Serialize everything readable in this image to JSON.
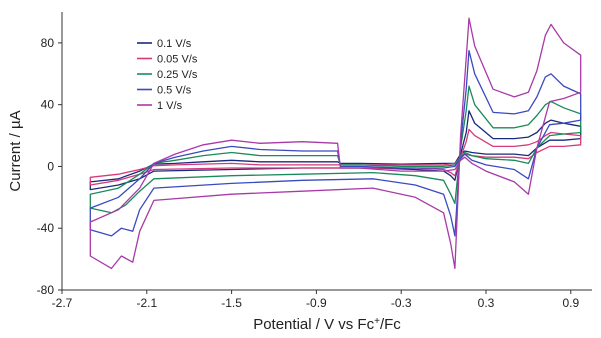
{
  "chart_data": {
    "type": "line",
    "xlabel": "Potential / V vs Fc",
    "xlabel_sup": "+",
    "xlabel_tail": "/Fc",
    "ylabel": "Current / µA",
    "xlim": [
      -2.7,
      1.05
    ],
    "ylim": [
      -80,
      100
    ],
    "x_ticks": [
      -2.7,
      -2.1,
      -1.5,
      -0.9,
      -0.3,
      0.3,
      0.9
    ],
    "x_tick_labels": [
      "-2.7",
      "-2.1",
      "-1.5",
      "-0.9",
      "-0.3",
      "0.3",
      "0.9"
    ],
    "y_ticks": [
      -80,
      -40,
      0,
      40,
      80
    ],
    "y_tick_labels": [
      "-80",
      "-40",
      "0",
      "40",
      "80"
    ],
    "grid": false,
    "legend_position": "top-left",
    "series": [
      {
        "name": "0.1 V/s",
        "color": "#1a2a7a",
        "segments": [
          [
            [
              -0.75,
              3
            ],
            [
              -1.0,
              3
            ],
            [
              -1.3,
              3
            ],
            [
              -1.5,
              4
            ],
            [
              -1.7,
              3
            ],
            [
              -1.9,
              2
            ],
            [
              -2.05,
              1.5
            ],
            [
              -2.15,
              -3
            ],
            [
              -2.3,
              -8
            ],
            [
              -2.5,
              -10
            ],
            [
              -2.5,
              -15
            ],
            [
              -2.3,
              -12
            ],
            [
              -2.15,
              -8
            ],
            [
              -2.05,
              -3
            ],
            [
              -1.5,
              -2
            ],
            [
              -1.0,
              -1
            ],
            [
              -0.5,
              -1
            ],
            [
              -0.2,
              -2
            ],
            [
              0.0,
              -3
            ],
            [
              0.05,
              -6
            ],
            [
              0.08,
              -9
            ],
            [
              0.12,
              8
            ],
            [
              0.16,
              22
            ],
            [
              0.18,
              36
            ],
            [
              0.22,
              28
            ],
            [
              0.35,
              18
            ],
            [
              0.5,
              18
            ],
            [
              0.6,
              19
            ],
            [
              0.66,
              22
            ],
            [
              0.72,
              28
            ],
            [
              0.76,
              30
            ],
            [
              0.85,
              28
            ],
            [
              0.97,
              26
            ],
            [
              0.97,
              18
            ],
            [
              0.85,
              17
            ],
            [
              0.75,
              17
            ],
            [
              0.66,
              12
            ],
            [
              0.6,
              7
            ],
            [
              0.5,
              8
            ],
            [
              0.3,
              8
            ],
            [
              0.2,
              9
            ],
            [
              0.15,
              10
            ],
            [
              0.12,
              8
            ],
            [
              0.08,
              2
            ],
            [
              0.0,
              2
            ],
            [
              -0.3,
              1.5
            ],
            [
              -0.6,
              2
            ],
            [
              -0.73,
              2
            ]
          ]
        ]
      },
      {
        "name": "0.05 V/s",
        "color": "#d63a7a",
        "segments": [
          [
            [
              -0.75,
              1
            ],
            [
              -1.0,
              1
            ],
            [
              -1.3,
              1
            ],
            [
              -1.5,
              2
            ],
            [
              -1.7,
              1.5
            ],
            [
              -1.9,
              1
            ],
            [
              -2.05,
              0.5
            ],
            [
              -2.15,
              -2
            ],
            [
              -2.3,
              -5
            ],
            [
              -2.5,
              -7
            ],
            [
              -2.5,
              -12
            ],
            [
              -2.3,
              -9
            ],
            [
              -2.15,
              -5
            ],
            [
              -2.05,
              -2
            ],
            [
              -1.5,
              -1
            ],
            [
              -1.0,
              -1
            ],
            [
              -0.5,
              -1
            ],
            [
              -0.2,
              -1
            ],
            [
              0.0,
              -2
            ],
            [
              0.05,
              -4
            ],
            [
              0.08,
              -6
            ],
            [
              0.12,
              6
            ],
            [
              0.16,
              16
            ],
            [
              0.18,
              24
            ],
            [
              0.22,
              20
            ],
            [
              0.35,
              13
            ],
            [
              0.5,
              13
            ],
            [
              0.6,
              14
            ],
            [
              0.66,
              16
            ],
            [
              0.72,
              20
            ],
            [
              0.76,
              22
            ],
            [
              0.85,
              21
            ],
            [
              0.97,
              20
            ],
            [
              0.97,
              14
            ],
            [
              0.85,
              13
            ],
            [
              0.75,
              13
            ],
            [
              0.66,
              9
            ],
            [
              0.6,
              5
            ],
            [
              0.5,
              6
            ],
            [
              0.3,
              6
            ],
            [
              0.2,
              7
            ],
            [
              0.15,
              8
            ],
            [
              0.12,
              6
            ],
            [
              0.08,
              2
            ],
            [
              0.0,
              1
            ],
            [
              -0.3,
              1
            ],
            [
              -0.6,
              1
            ],
            [
              -0.73,
              1
            ]
          ]
        ]
      },
      {
        "name": "0.25 V/s",
        "color": "#1a8a5a",
        "segments": [
          [
            [
              -0.75,
              7
            ],
            [
              -1.0,
              7
            ],
            [
              -1.3,
              7
            ],
            [
              -1.5,
              9
            ],
            [
              -1.7,
              7
            ],
            [
              -1.9,
              4
            ],
            [
              -2.05,
              2
            ],
            [
              -2.15,
              -5
            ],
            [
              -2.3,
              -14
            ],
            [
              -2.5,
              -18
            ],
            [
              -2.5,
              -27
            ],
            [
              -2.35,
              -30
            ],
            [
              -2.25,
              -25
            ],
            [
              -2.15,
              -16
            ],
            [
              -2.05,
              -8
            ],
            [
              -1.5,
              -6
            ],
            [
              -1.0,
              -5
            ],
            [
              -0.5,
              -4
            ],
            [
              -0.2,
              -6
            ],
            [
              0.0,
              -9
            ],
            [
              0.05,
              -18
            ],
            [
              0.08,
              -24
            ],
            [
              0.12,
              12
            ],
            [
              0.16,
              36
            ],
            [
              0.18,
              52
            ],
            [
              0.22,
              40
            ],
            [
              0.35,
              25
            ],
            [
              0.5,
              25
            ],
            [
              0.6,
              27
            ],
            [
              0.66,
              33
            ],
            [
              0.72,
              40
            ],
            [
              0.76,
              42
            ],
            [
              0.85,
              38
            ],
            [
              0.97,
              34
            ],
            [
              0.97,
              22
            ],
            [
              0.85,
              21
            ],
            [
              0.75,
              20
            ],
            [
              0.66,
              12
            ],
            [
              0.6,
              2
            ],
            [
              0.5,
              4
            ],
            [
              0.3,
              5
            ],
            [
              0.2,
              7
            ],
            [
              0.15,
              9
            ],
            [
              0.12,
              6
            ],
            [
              0.08,
              1
            ],
            [
              0.0,
              0
            ],
            [
              -0.3,
              0
            ],
            [
              -0.6,
              1
            ],
            [
              -0.73,
              1
            ]
          ]
        ]
      },
      {
        "name": "0.5 V/s",
        "color": "#3a4ac0",
        "segments": [
          [
            [
              -0.75,
              10
            ],
            [
              -1.0,
              10
            ],
            [
              -1.3,
              11
            ],
            [
              -1.5,
              13
            ],
            [
              -1.7,
              10
            ],
            [
              -1.9,
              6
            ],
            [
              -2.05,
              2
            ],
            [
              -2.15,
              -8
            ],
            [
              -2.3,
              -20
            ],
            [
              -2.5,
              -27
            ],
            [
              -2.5,
              -41
            ],
            [
              -2.35,
              -45
            ],
            [
              -2.28,
              -40
            ],
            [
              -2.2,
              -42
            ],
            [
              -2.15,
              -28
            ],
            [
              -2.05,
              -14
            ],
            [
              -1.5,
              -11
            ],
            [
              -1.0,
              -9
            ],
            [
              -0.5,
              -8
            ],
            [
              -0.2,
              -12
            ],
            [
              0.0,
              -18
            ],
            [
              0.05,
              -32
            ],
            [
              0.08,
              -45
            ],
            [
              0.12,
              15
            ],
            [
              0.16,
              50
            ],
            [
              0.18,
              75
            ],
            [
              0.22,
              60
            ],
            [
              0.35,
              35
            ],
            [
              0.5,
              34
            ],
            [
              0.6,
              36
            ],
            [
              0.66,
              45
            ],
            [
              0.72,
              58
            ],
            [
              0.76,
              60
            ],
            [
              0.85,
              52
            ],
            [
              0.97,
              47
            ],
            [
              0.97,
              30
            ],
            [
              0.85,
              28
            ],
            [
              0.75,
              27
            ],
            [
              0.66,
              12
            ],
            [
              0.6,
              -8
            ],
            [
              0.5,
              -2
            ],
            [
              0.3,
              1
            ],
            [
              0.2,
              4
            ],
            [
              0.15,
              8
            ],
            [
              0.12,
              5
            ],
            [
              0.08,
              0
            ],
            [
              0.0,
              -1
            ],
            [
              -0.3,
              -1
            ],
            [
              -0.6,
              0
            ],
            [
              -0.73,
              0
            ]
          ]
        ]
      },
      {
        "name": "1 V/s",
        "color": "#a83aa8",
        "segments": [
          [
            [
              -0.75,
              15
            ],
            [
              -1.0,
              16
            ],
            [
              -1.3,
              15
            ],
            [
              -1.5,
              17
            ],
            [
              -1.7,
              14
            ],
            [
              -1.9,
              8
            ],
            [
              -2.05,
              2
            ],
            [
              -2.15,
              -14
            ],
            [
              -2.3,
              -28
            ],
            [
              -2.5,
              -36
            ],
            [
              -2.5,
              -58
            ],
            [
              -2.35,
              -66
            ],
            [
              -2.28,
              -58
            ],
            [
              -2.2,
              -62
            ],
            [
              -2.15,
              -42
            ],
            [
              -2.05,
              -22
            ],
            [
              -1.5,
              -18
            ],
            [
              -1.0,
              -16
            ],
            [
              -0.5,
              -14
            ],
            [
              -0.2,
              -20
            ],
            [
              0.0,
              -30
            ],
            [
              0.05,
              -50
            ],
            [
              0.08,
              -66
            ],
            [
              0.12,
              20
            ],
            [
              0.16,
              70
            ],
            [
              0.18,
              96
            ],
            [
              0.22,
              78
            ],
            [
              0.35,
              50
            ],
            [
              0.5,
              45
            ],
            [
              0.6,
              48
            ],
            [
              0.66,
              62
            ],
            [
              0.72,
              85
            ],
            [
              0.76,
              92
            ],
            [
              0.85,
              80
            ],
            [
              0.97,
              72
            ],
            [
              0.97,
              48
            ],
            [
              0.85,
              44
            ],
            [
              0.75,
              42
            ],
            [
              0.66,
              12
            ],
            [
              0.6,
              -18
            ],
            [
              0.5,
              -10
            ],
            [
              0.3,
              -3
            ],
            [
              0.2,
              2
            ],
            [
              0.15,
              6
            ],
            [
              0.12,
              4
            ],
            [
              0.08,
              -2
            ],
            [
              0.0,
              -3
            ],
            [
              -0.3,
              -3
            ],
            [
              -0.6,
              -1
            ],
            [
              -0.73,
              -1
            ]
          ]
        ]
      }
    ]
  }
}
